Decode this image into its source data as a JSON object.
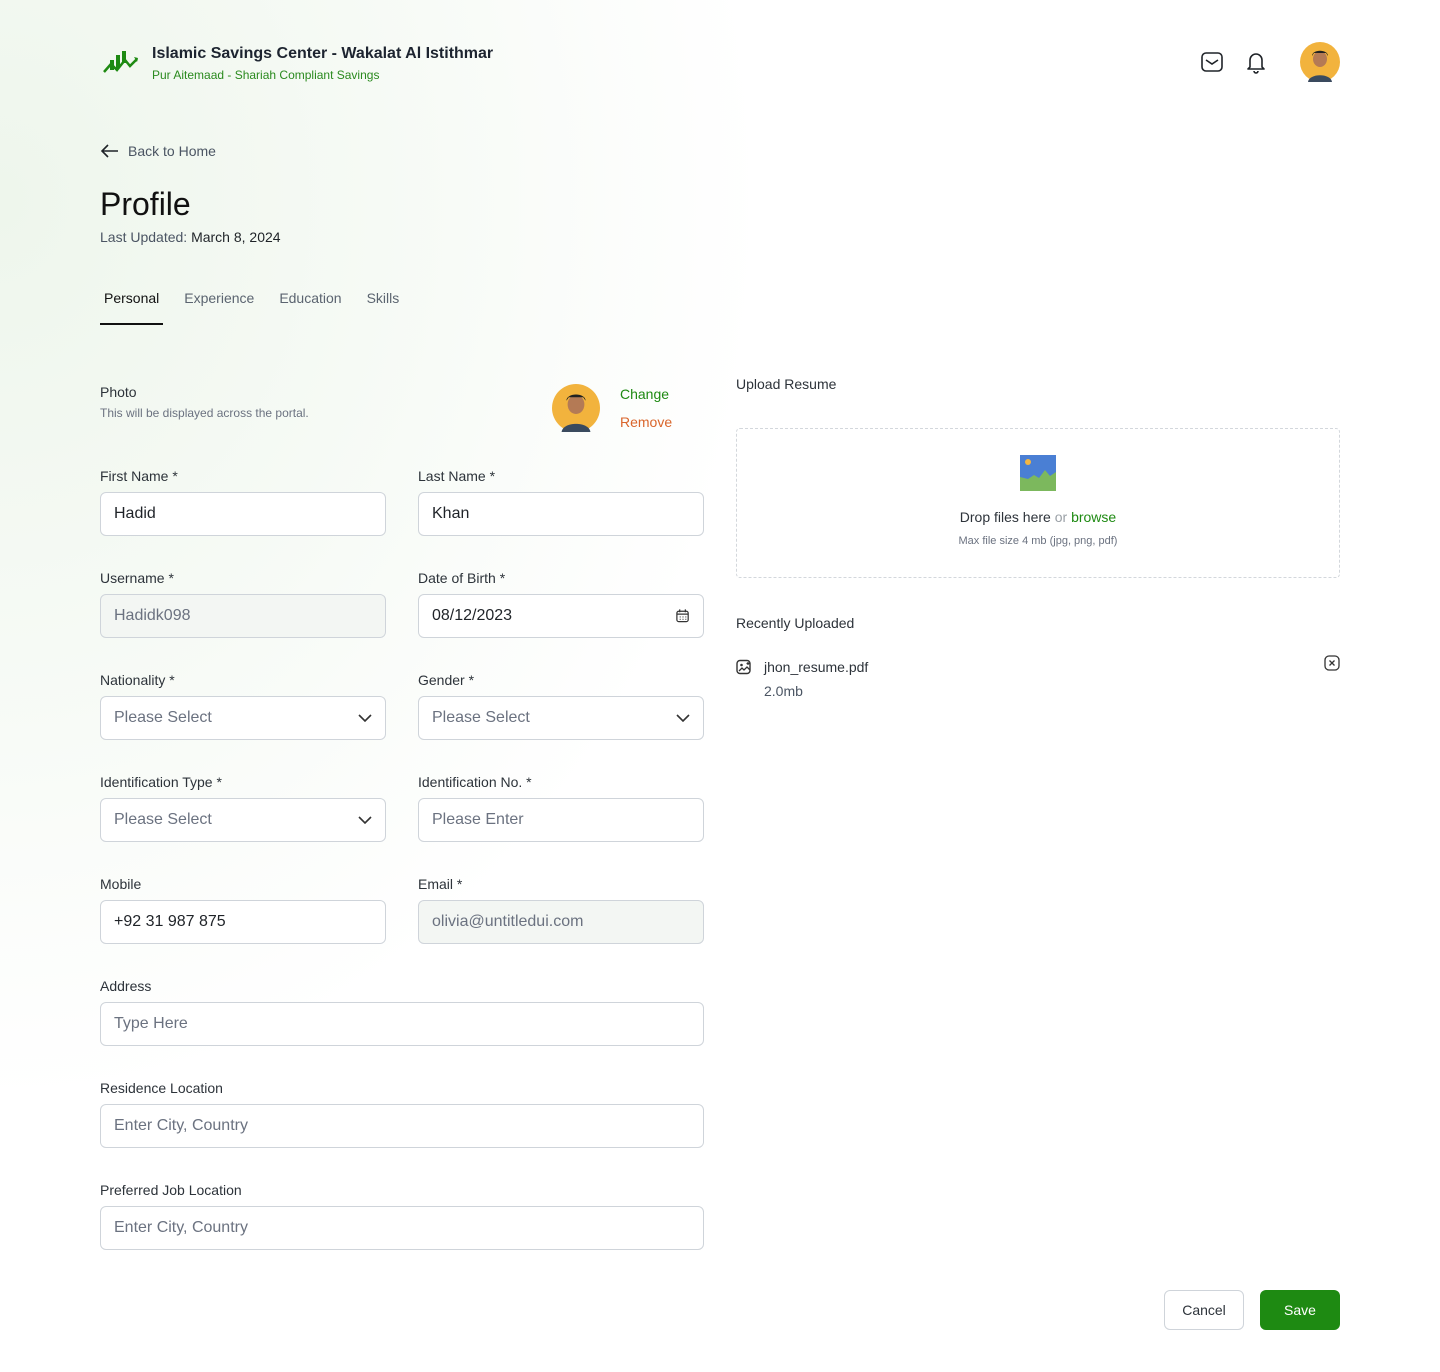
{
  "header": {
    "title": "Islamic Savings Center - Wakalat Al Istithmar",
    "subtitle": "Pur Aitemaad - Shariah Compliant Savings"
  },
  "nav": {
    "back": "Back to Home"
  },
  "page": {
    "title": "Profile",
    "updated_label": "Last Updated:",
    "updated_value": "March 8, 2024"
  },
  "tabs": [
    {
      "label": "Personal",
      "active": true
    },
    {
      "label": "Experience"
    },
    {
      "label": "Education"
    },
    {
      "label": "Skills"
    }
  ],
  "photo": {
    "label": "Photo",
    "hint": "This will be displayed across the portal.",
    "change": "Change",
    "remove": "Remove"
  },
  "form": {
    "first_name": {
      "label": "First Name *",
      "value": "Hadid"
    },
    "last_name": {
      "label": "Last Name *",
      "value": "Khan"
    },
    "username": {
      "label": "Username *",
      "value": "Hadidk098"
    },
    "dob": {
      "label": "Date of Birth *",
      "value": "08/12/2023"
    },
    "nationality": {
      "label": "Nationality *",
      "placeholder": "Please Select"
    },
    "gender": {
      "label": "Gender *",
      "placeholder": "Please Select"
    },
    "id_type": {
      "label": "Identification Type *",
      "placeholder": "Please Select"
    },
    "id_no": {
      "label": "Identification No. *",
      "placeholder": "Please Enter"
    },
    "mobile": {
      "label": "Mobile",
      "value": "+92 31 987 875"
    },
    "email": {
      "label": "Email *",
      "value": "olivia@untitledui.com"
    },
    "address": {
      "label": "Address",
      "placeholder": "Type Here"
    },
    "residence": {
      "label": "Residence Location",
      "placeholder": "Enter City, Country"
    },
    "job_location": {
      "label": "Preferred Job Location",
      "placeholder": "Enter City, Country"
    }
  },
  "upload": {
    "label": "Upload Resume",
    "drop": "Drop files here",
    "or": "or",
    "browse": "browse",
    "hint": "Max file size 4 mb (jpg, png, pdf)"
  },
  "recent": {
    "label": "Recently Uploaded",
    "files": [
      {
        "name": "jhon_resume.pdf",
        "size": "2.0mb"
      }
    ]
  },
  "actions": {
    "cancel": "Cancel",
    "save": "Save"
  },
  "colors": {
    "accent": "#1e8a12",
    "remove": "#d9652b"
  }
}
